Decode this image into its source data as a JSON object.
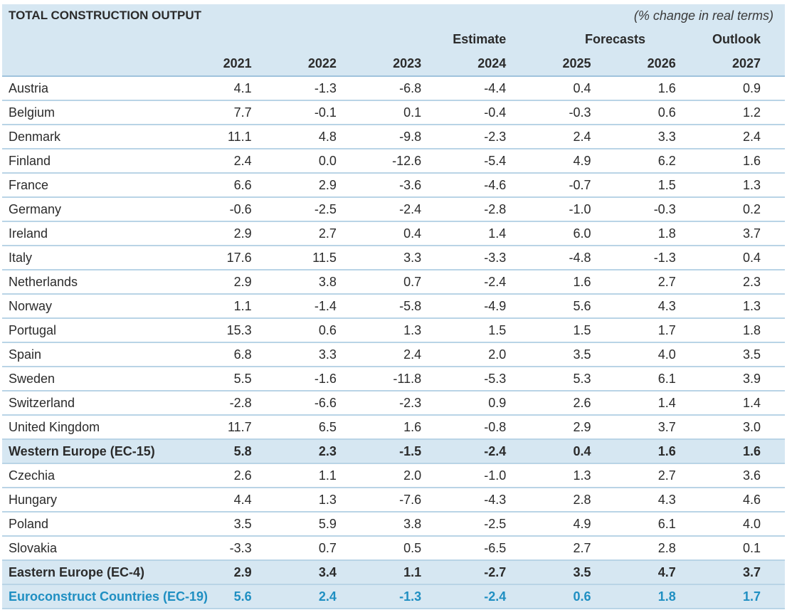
{
  "title": "TOTAL CONSTRUCTION OUTPUT",
  "unit_note": "(% change in real terms)",
  "group_labels": {
    "estimate": "Estimate",
    "forecasts": "Forecasts",
    "outlook": "Outlook"
  },
  "years": [
    "2021",
    "2022",
    "2023",
    "2024",
    "2025",
    "2026",
    "2027"
  ],
  "rows": [
    {
      "name": "Austria",
      "type": "country",
      "values": [
        "4.1",
        "-1.3",
        "-6.8",
        "-4.4",
        "0.4",
        "1.6",
        "0.9"
      ]
    },
    {
      "name": "Belgium",
      "type": "country",
      "values": [
        "7.7",
        "-0.1",
        "0.1",
        "-0.4",
        "-0.3",
        "0.6",
        "1.2"
      ]
    },
    {
      "name": "Denmark",
      "type": "country",
      "values": [
        "11.1",
        "4.8",
        "-9.8",
        "-2.3",
        "2.4",
        "3.3",
        "2.4"
      ]
    },
    {
      "name": "Finland",
      "type": "country",
      "values": [
        "2.4",
        "0.0",
        "-12.6",
        "-5.4",
        "4.9",
        "6.2",
        "1.6"
      ]
    },
    {
      "name": "France",
      "type": "country",
      "values": [
        "6.6",
        "2.9",
        "-3.6",
        "-4.6",
        "-0.7",
        "1.5",
        "1.3"
      ]
    },
    {
      "name": "Germany",
      "type": "country",
      "values": [
        "-0.6",
        "-2.5",
        "-2.4",
        "-2.8",
        "-1.0",
        "-0.3",
        "0.2"
      ]
    },
    {
      "name": "Ireland",
      "type": "country",
      "values": [
        "2.9",
        "2.7",
        "0.4",
        "1.4",
        "6.0",
        "1.8",
        "3.7"
      ]
    },
    {
      "name": "Italy",
      "type": "country",
      "values": [
        "17.6",
        "11.5",
        "3.3",
        "-3.3",
        "-4.8",
        "-1.3",
        "0.4"
      ]
    },
    {
      "name": "Netherlands",
      "type": "country",
      "values": [
        "2.9",
        "3.8",
        "0.7",
        "-2.4",
        "1.6",
        "2.7",
        "2.3"
      ]
    },
    {
      "name": "Norway",
      "type": "country",
      "values": [
        "1.1",
        "-1.4",
        "-5.8",
        "-4.9",
        "5.6",
        "4.3",
        "1.3"
      ]
    },
    {
      "name": "Portugal",
      "type": "country",
      "values": [
        "15.3",
        "0.6",
        "1.3",
        "1.5",
        "1.5",
        "1.7",
        "1.8"
      ]
    },
    {
      "name": "Spain",
      "type": "country",
      "values": [
        "6.8",
        "3.3",
        "2.4",
        "2.0",
        "3.5",
        "4.0",
        "3.5"
      ]
    },
    {
      "name": "Sweden",
      "type": "country",
      "values": [
        "5.5",
        "-1.6",
        "-11.8",
        "-5.3",
        "5.3",
        "6.1",
        "3.9"
      ]
    },
    {
      "name": "Switzerland",
      "type": "country",
      "values": [
        "-2.8",
        "-6.6",
        "-2.3",
        "0.9",
        "2.6",
        "1.4",
        "1.4"
      ]
    },
    {
      "name": "United Kingdom",
      "type": "country",
      "values": [
        "11.7",
        "6.5",
        "1.6",
        "-0.8",
        "2.9",
        "3.7",
        "3.0"
      ]
    },
    {
      "name": "Western Europe (EC-15)",
      "type": "subtotal",
      "values": [
        "5.8",
        "2.3",
        "-1.5",
        "-2.4",
        "0.4",
        "1.6",
        "1.6"
      ]
    },
    {
      "name": "Czechia",
      "type": "country",
      "values": [
        "2.6",
        "1.1",
        "2.0",
        "-1.0",
        "1.3",
        "2.7",
        "3.6"
      ]
    },
    {
      "name": "Hungary",
      "type": "country",
      "values": [
        "4.4",
        "1.3",
        "-7.6",
        "-4.3",
        "2.8",
        "4.3",
        "4.6"
      ]
    },
    {
      "name": "Poland",
      "type": "country",
      "values": [
        "3.5",
        "5.9",
        "3.8",
        "-2.5",
        "4.9",
        "6.1",
        "4.0"
      ]
    },
    {
      "name": "Slovakia",
      "type": "country",
      "values": [
        "-3.3",
        "0.7",
        "0.5",
        "-6.5",
        "2.7",
        "2.8",
        "0.1"
      ]
    },
    {
      "name": "Eastern Europe (EC-4)",
      "type": "subtotal",
      "values": [
        "2.9",
        "3.4",
        "1.1",
        "-2.7",
        "3.5",
        "4.7",
        "3.7"
      ]
    },
    {
      "name": "Euroconstruct Countries (EC-19)",
      "type": "total",
      "values": [
        "5.6",
        "2.4",
        "-1.3",
        "-2.4",
        "0.6",
        "1.8",
        "1.7"
      ]
    }
  ],
  "colors": {
    "header_bg": "#d6e7f2",
    "row_line": "#b9d4e6",
    "total_text": "#1f8fc2"
  }
}
